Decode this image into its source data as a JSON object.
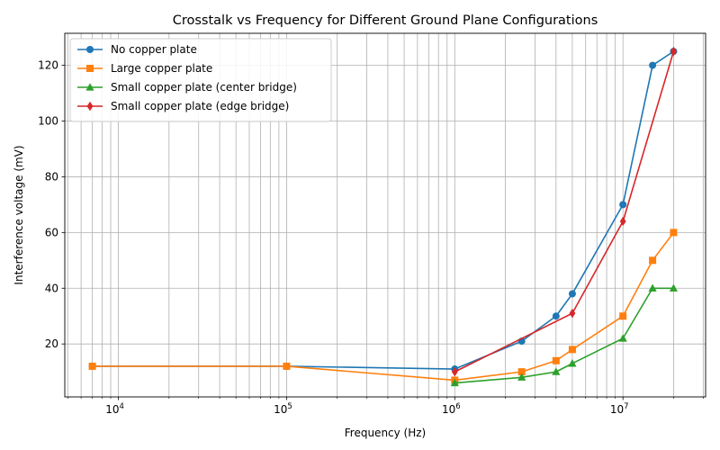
{
  "chart_data": {
    "type": "line",
    "title": "Crosstalk vs Frequency for Different Ground Plane Configurations",
    "xlabel": "Frequency (Hz)",
    "ylabel": "Interference voltage (mV)",
    "xscale": "log",
    "xlim": [
      4800,
      31000000
    ],
    "ylim": [
      1,
      131.5
    ],
    "xticks": [
      {
        "value": 10000,
        "base": "10",
        "exp": "4"
      },
      {
        "value": 100000,
        "base": "10",
        "exp": "5"
      },
      {
        "value": 1000000,
        "base": "10",
        "exp": "6"
      },
      {
        "value": 10000000,
        "base": "10",
        "exp": "7"
      }
    ],
    "yticks": [
      20,
      40,
      60,
      80,
      100,
      120
    ],
    "grid": true,
    "grid_minor_x": true,
    "legend_position": "top-left",
    "series": [
      {
        "name": "No copper plate",
        "color": "#1f77b4",
        "marker": "circle",
        "x": [
          7000,
          100000,
          1000000,
          2500000,
          4000000,
          5000000,
          10000000,
          15000000,
          20000000
        ],
        "y": [
          12,
          12,
          11,
          21,
          30,
          38,
          70,
          120,
          125
        ]
      },
      {
        "name": "Large copper plate",
        "color": "#ff7f0e",
        "marker": "square",
        "x": [
          7000,
          100000,
          1000000,
          2500000,
          4000000,
          5000000,
          10000000,
          15000000,
          20000000
        ],
        "y": [
          12,
          12,
          7,
          10,
          14,
          18,
          30,
          50,
          60
        ]
      },
      {
        "name": "Small copper plate (center bridge)",
        "color": "#2ca02c",
        "marker": "triangle",
        "x": [
          1000000,
          2500000,
          4000000,
          5000000,
          10000000,
          15000000,
          20000000
        ],
        "y": [
          6,
          8,
          10,
          13,
          22,
          40,
          40
        ]
      },
      {
        "name": "Small copper plate (edge bridge)",
        "color": "#d62728",
        "marker": "diamond",
        "x": [
          1000000,
          5000000,
          10000000,
          20000000
        ],
        "y": [
          10,
          31,
          64,
          125
        ]
      }
    ]
  }
}
